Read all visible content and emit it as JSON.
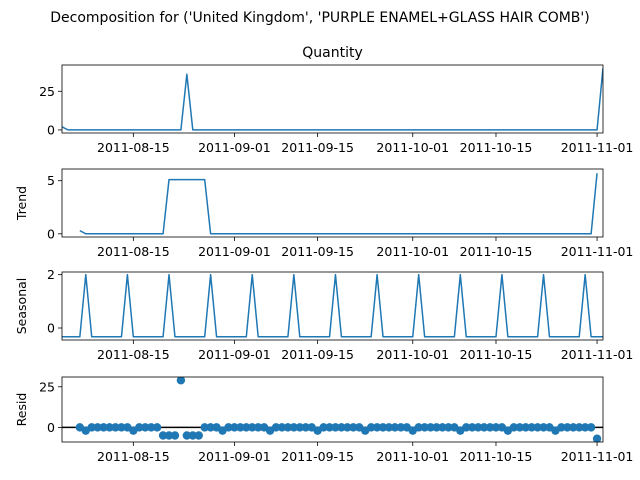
{
  "figure": {
    "suptitle": "Decomposition for ('United Kingdom', 'PURPLE ENAMEL+GLASS HAIR COMB')",
    "line_color": "#1f77b4",
    "zero_line_color": "#000000"
  },
  "chart_data": [
    {
      "id": "quantity",
      "type": "line",
      "title": "Quantity",
      "ylabel": "",
      "xlim": [
        "2011-08-03",
        "2011-11-02"
      ],
      "ylim": [
        -2,
        42
      ],
      "yticks": [
        0,
        25
      ],
      "xticks": [
        "2011-08-15",
        "2011-09-01",
        "2011-09-15",
        "2011-10-01",
        "2011-10-15",
        "2011-11-01"
      ],
      "x": [
        "2011-08-03",
        "2011-08-04",
        "2011-08-23",
        "2011-08-24",
        "2011-08-25",
        "2011-11-01",
        "2011-11-02"
      ],
      "y": [
        2,
        0,
        0,
        36,
        0,
        0,
        40
      ]
    },
    {
      "id": "trend",
      "type": "line",
      "title": "",
      "ylabel": "Trend",
      "xlim": [
        "2011-08-03",
        "2011-11-02"
      ],
      "ylim": [
        -0.3,
        6.1
      ],
      "yticks": [
        0,
        5
      ],
      "xticks": [
        "2011-08-15",
        "2011-09-01",
        "2011-09-15",
        "2011-10-01",
        "2011-10-15",
        "2011-11-01"
      ],
      "x": [
        "2011-08-06",
        "2011-08-07",
        "2011-08-20",
        "2011-08-21",
        "2011-08-27",
        "2011-08-28",
        "2011-10-31",
        "2011-11-01"
      ],
      "y": [
        0.3,
        0,
        0,
        5.1,
        5.1,
        0,
        0,
        5.7
      ]
    },
    {
      "id": "seasonal",
      "type": "line",
      "title": "",
      "ylabel": "Seasonal",
      "xlim": [
        "2011-08-03",
        "2011-11-02"
      ],
      "ylim": [
        -0.45,
        2.1
      ],
      "yticks": [
        0,
        2
      ],
      "xticks": [
        "2011-08-15",
        "2011-09-01",
        "2011-09-15",
        "2011-10-01",
        "2011-10-15",
        "2011-11-01"
      ],
      "period": 7,
      "first_peak": "2011-08-07",
      "peak": 2.0,
      "trough": -0.33
    },
    {
      "id": "resid",
      "type": "scatter",
      "title": "",
      "ylabel": "Resid",
      "xlim": [
        "2011-08-03",
        "2011-11-02"
      ],
      "ylim": [
        -9,
        31
      ],
      "yticks": [
        0,
        25
      ],
      "xticks": [
        "2011-08-15",
        "2011-09-01",
        "2011-09-15",
        "2011-10-01",
        "2011-10-15",
        "2011-11-01"
      ],
      "start": "2011-08-06",
      "y": [
        0,
        -2,
        0,
        0,
        0,
        0,
        0,
        0,
        0,
        -2,
        0,
        0,
        0,
        0,
        -5,
        -5,
        -5,
        29,
        -5,
        -5,
        -5,
        0,
        0,
        0,
        -2,
        0,
        0,
        0,
        0,
        0,
        0,
        0,
        -2,
        0,
        0,
        0,
        0,
        0,
        0,
        0,
        -2,
        0,
        0,
        0,
        0,
        0,
        0,
        0,
        -2,
        0,
        0,
        0,
        0,
        0,
        0,
        0,
        -2,
        0,
        0,
        0,
        0,
        0,
        0,
        0,
        -2,
        0,
        0,
        0,
        0,
        0,
        0,
        0,
        -2,
        0,
        0,
        0,
        0,
        0,
        0,
        0,
        -2,
        0,
        0,
        0,
        0,
        0,
        0,
        -7
      ]
    }
  ]
}
